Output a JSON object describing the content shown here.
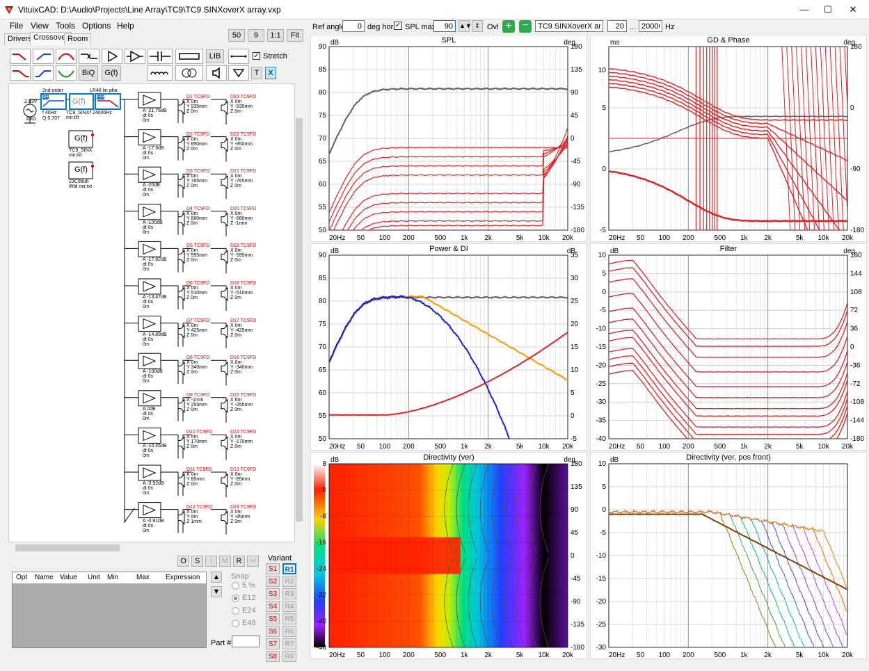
{
  "window": {
    "title": "VituixCAD: D:\\Audio\\Projects\\Line Array\\TC9\\TC9 SINXoverX array.vxp",
    "minimize": "—",
    "maximize": "☐",
    "close": "✕"
  },
  "menu": [
    "File",
    "View",
    "Tools",
    "Options",
    "Help"
  ],
  "tabs": [
    "Drivers",
    "Crossover",
    "Room"
  ],
  "zoom_buttons": [
    "50",
    "9",
    "1:1",
    "Fit"
  ],
  "toolbar": {
    "lib": "LIB",
    "biq": "BiQ",
    "gf": "G(f)",
    "stretch": "Stretch",
    "t": "T",
    "x": "X"
  },
  "top_controls": {
    "ref_angle_label": "Ref angle",
    "ref_angle_value": "0",
    "deg_hor": "deg hor",
    "spl_max_label": "SPL max",
    "spl_max_value": "90",
    "ovl_label": "Ovl",
    "ovl_name": "TC9 SINXoverX array",
    "f_min": "20",
    "ellipsis": "...",
    "f_max": "20000",
    "hz": "Hz"
  },
  "schematic": {
    "source": "2.83V",
    "source_r": "1mΩ",
    "block1_label": "2nd order",
    "block1_type": "IIR",
    "block1_f": "f   40Hz",
    "block1_q": "Q  0.707",
    "block2_type": "G(f)",
    "block2_file": "TC9_SINX mir.txt",
    "block3_label": "LR48 lin-pha",
    "block3_type": "FIR",
    "block3_f": "f   24000Hz",
    "gf2_label": "TC9_SINX mir.txt",
    "gf3_label": "23C98uh Wtd mir.txt",
    "channels": [
      {
        "a": "A  -21.76dB",
        "dt": "dt  0s",
        "z": "0m",
        "d1": "D1 TC9FD",
        "d1x": "X  0m",
        "d1y": "Y  935mm",
        "d1z": "Z  0m",
        "d2": "D23 TC9FD",
        "d2x": "X  0m",
        "d2y": "Y  -935mm",
        "d2z": "Z  0m"
      },
      {
        "a": "A  -17.9dB",
        "dt": "dt  0s",
        "z": "0m",
        "d1": "D2 TC9FD",
        "d1x": "X  0m",
        "d1y": "Y  850mm",
        "d1z": "Z  0m",
        "d2": "D22 TC9FD",
        "d2x": "X  0m",
        "d2y": "Y  -850mm",
        "d2z": "Z  0m"
      },
      {
        "a": "A  -20dB",
        "dt": "dt  0s",
        "z": "0m",
        "d1": "D3 TC9FD",
        "d1x": "X  0m",
        "d1y": "Y  765mm",
        "d1z": "Z  0m",
        "d2": "D21 TC9FD",
        "d2x": "X  0m",
        "d2y": "Y  -765mm",
        "d2z": "Z  0m"
      },
      {
        "a": "A  -100dB",
        "dt": "dt  0s",
        "z": "0m",
        "d1": "D4 TC9FD",
        "d1x": "X  0m",
        "d1y": "Y  680mm",
        "d1z": "Z  0m",
        "d2": "D20 TC9FD",
        "d2x": "X  0m",
        "d2y": "Y  -680mm",
        "d2z": "Z  -1mm"
      },
      {
        "a": "A  -17.82dB",
        "dt": "dt  0s",
        "z": "0m",
        "d1": "D5 TC9FD",
        "d1x": "X  0m",
        "d1y": "Y  595mm",
        "d1z": "Z  0m",
        "d2": "D19 TC9FD",
        "d2x": "X  0m",
        "d2y": "Y  -595mm",
        "d2z": "Z  0m"
      },
      {
        "a": "A  -13.47dB",
        "dt": "dt  0s",
        "z": "0m",
        "d1": "D6 TC9FD",
        "d1x": "X  0m",
        "d1y": "Y  510mm",
        "d1z": "Z  0m",
        "d2": "D18 TC9FD",
        "d2x": "X  0m",
        "d2y": "Y  -510mm",
        "d2z": "Z  0m"
      },
      {
        "a": "A  -14.89dB",
        "dt": "dt  0s",
        "z": "0m",
        "d1": "D7 TC9FD",
        "d1x": "X  0m",
        "d1y": "Y  425mm",
        "d1z": "Z  0m",
        "d2": "D17 TC9FD",
        "d2x": "X  0m",
        "d2y": "Y  -425mm",
        "d2z": "Z  0m"
      },
      {
        "a": "A  -100dB",
        "dt": "dt  0s",
        "z": "0m",
        "d1": "D8 TC9FD",
        "d1x": "X  0m",
        "d1y": "Y  340mm",
        "d1z": "Z  0m",
        "d2": "D16 TC9FD",
        "d2x": "X  0m",
        "d2y": "Y  -340mm",
        "d2z": "Z  0m"
      },
      {
        "a": "A  0dB",
        "dt": "dt  0s",
        "z": "0m",
        "d1": "D9 TC9FD",
        "d1x": "X  -1mm",
        "d1y": "Y  255mm",
        "d1z": "Z  0m",
        "d2": "D15 TC9FD",
        "d2x": "X  0m",
        "d2y": "Y  -255mm",
        "d2z": "Z  0m"
      },
      {
        "a": "A  -10.45dB",
        "dt": "dt  0s",
        "z": "0m",
        "d1": "D10 TC9FD",
        "d1x": "X  0m",
        "d1y": "Y  170mm",
        "d1z": "Z  0m",
        "d2": "D14 TC9FD",
        "d2x": "X  0m",
        "d2y": "Y  -170mm",
        "d2z": "Z  0m"
      },
      {
        "a": "A  -3.92dB",
        "dt": "dt  0s",
        "z": "0m",
        "d1": "D11 TC9FD",
        "d1x": "X  0m",
        "d1y": "Y  85mm",
        "d1z": "Z  0m",
        "d2": "D13 TC9FD",
        "d2x": "X  0m",
        "d2y": "Y  -85mm",
        "d2z": "Z  0m"
      },
      {
        "a": "A  -0.91dB",
        "dt": "dt  0s",
        "z": "0m",
        "d1": "D12 TC9FD",
        "d1x": "X  0m",
        "d1y": "Y  0m",
        "d1z": "Z  1mm",
        "d2": "D24 TC9FD",
        "d2x": "X  0m",
        "d2y": "Y  -85mm",
        "d2z": "Z  0m"
      }
    ]
  },
  "opt_buttons": [
    "O",
    "S",
    "I",
    "M",
    "R",
    "H"
  ],
  "opt_table_headers": [
    "Opt",
    "Name",
    "Value",
    "Unit",
    "Min",
    "Max",
    "Expression"
  ],
  "snap": {
    "label": "Snap",
    "options": [
      "5 %",
      "E12",
      "E24",
      "E48"
    ],
    "selected": "E12"
  },
  "part_label": "Part #",
  "variant": {
    "label": "Variant",
    "s": [
      "S1",
      "S2",
      "S3",
      "S4",
      "S5",
      "S6",
      "S7",
      "S8"
    ],
    "r": [
      "R1",
      "R2",
      "R3",
      "R4",
      "R5",
      "R6",
      "R7",
      "R8"
    ]
  },
  "freq_ticks": [
    "20Hz",
    "50",
    "100",
    "200",
    "500",
    "1k",
    "2k",
    "5k",
    "10k",
    "20k"
  ],
  "panels": {
    "spl": {
      "title": "SPL",
      "left_unit": "dB",
      "right_unit": "deg",
      "left_ticks": [
        "90",
        "85",
        "80",
        "75",
        "70",
        "65",
        "60",
        "55",
        "50"
      ],
      "right_ticks": [
        "180",
        "135",
        "90",
        "45",
        "0",
        "-45",
        "-90",
        "-135",
        "-180"
      ]
    },
    "gd": {
      "title": "GD & Phase",
      "left_unit": "ms",
      "right_unit": "deg",
      "left_ticks": [
        "10",
        "5",
        "0",
        "-5"
      ],
      "right_ticks": [
        "180",
        "0",
        "-90",
        "-180"
      ]
    },
    "power": {
      "title": "Power & DI",
      "left_unit": "dB",
      "right_unit": "dB",
      "left_ticks": [
        "90",
        "85",
        "80",
        "75",
        "70",
        "65",
        "60",
        "55",
        "50"
      ],
      "right_ticks": [
        "35",
        "30",
        "25",
        "20",
        "15",
        "10",
        "5",
        "0",
        "-5"
      ]
    },
    "filter": {
      "title": "Filter",
      "left_unit": "dB",
      "right_unit": "deg",
      "left_ticks": [
        "10",
        "5",
        "0",
        "-5",
        "-10",
        "-15",
        "-20",
        "-25",
        "-30",
        "-35",
        "-40"
      ],
      "right_ticks": [
        "180",
        "144",
        "108",
        "72",
        "36",
        "0",
        "-36",
        "-72",
        "-108",
        "-144",
        "-180"
      ]
    },
    "dirver": {
      "title": "Directivity (ver)",
      "left_unit": "dB",
      "right_unit": "deg",
      "scale_ticks": [
        "8",
        "0",
        "-8",
        "-16",
        "-24",
        "-32",
        "-40",
        "-48"
      ],
      "right_ticks": [
        "180",
        "135",
        "90",
        "45",
        "0",
        "-45",
        "-90",
        "-135",
        "-180"
      ]
    },
    "dirfront": {
      "title": "Directivity (ver, pos front)",
      "left_unit": "dB",
      "left_ticks": [
        "10",
        "5",
        "0",
        "-5",
        "-10",
        "-15",
        "-20",
        "-25",
        "-30"
      ]
    }
  },
  "colors": {
    "red": "#e02020",
    "gray": "#606060",
    "orange": "#ff9900",
    "blue": "#1020e0",
    "accent": "#0078d7"
  }
}
